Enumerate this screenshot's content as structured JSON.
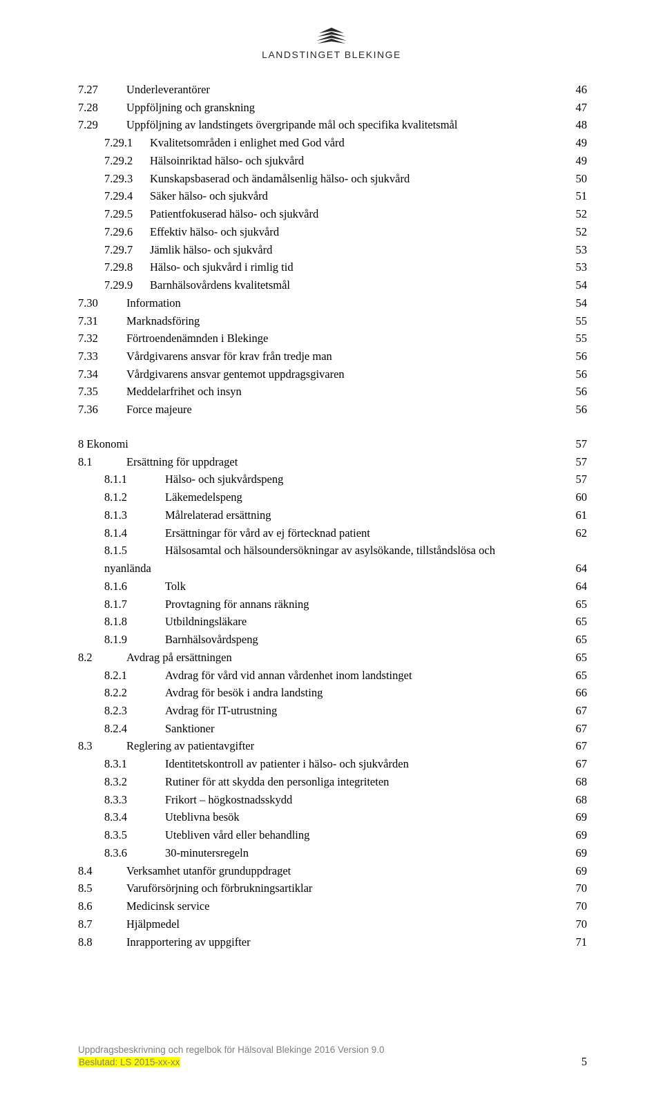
{
  "header": {
    "org_name": "LANDSTINGET BLEKINGE"
  },
  "toc": [
    {
      "indent": 0,
      "num": "7.27",
      "title": "Underleverantörer",
      "page": "46"
    },
    {
      "indent": 0,
      "num": "7.28",
      "title": "Uppföljning och granskning",
      "page": "47"
    },
    {
      "indent": 0,
      "num": "7.29",
      "title": "Uppföljning av landstingets övergripande mål och specifika kvalitetsmål",
      "page": "48"
    },
    {
      "indent": 1,
      "num": "7.29.1",
      "title": "Kvalitetsområden i enlighet med God vård",
      "page": "49"
    },
    {
      "indent": 1,
      "num": "7.29.2",
      "title": "Hälsoinriktad hälso- och sjukvård",
      "page": "49"
    },
    {
      "indent": 1,
      "num": "7.29.3",
      "title": "Kunskapsbaserad och ändamålsenlig hälso- och sjukvård",
      "page": "50"
    },
    {
      "indent": 1,
      "num": "7.29.4",
      "title": "Säker hälso- och sjukvård",
      "page": "51"
    },
    {
      "indent": 1,
      "num": "7.29.5",
      "title": "Patientfokuserad hälso- och sjukvård",
      "page": "52"
    },
    {
      "indent": 1,
      "num": "7.29.6",
      "title": "Effektiv hälso- och sjukvård",
      "page": "52"
    },
    {
      "indent": 1,
      "num": "7.29.7",
      "title": "Jämlik hälso- och sjukvård",
      "page": "53"
    },
    {
      "indent": 1,
      "num": "7.29.8",
      "title": "Hälso- och sjukvård i rimlig tid",
      "page": "53"
    },
    {
      "indent": 1,
      "num": "7.29.9",
      "title": "Barnhälsovårdens kvalitetsmål",
      "page": "54"
    },
    {
      "indent": 0,
      "num": "7.30",
      "title": "Information",
      "page": "54"
    },
    {
      "indent": 0,
      "num": "7.31",
      "title": "Marknadsföring",
      "page": "55"
    },
    {
      "indent": 0,
      "num": "7.32",
      "title": "Förtroendenämnden i Blekinge",
      "page": "55"
    },
    {
      "indent": 0,
      "num": "7.33",
      "title": "Vårdgivarens ansvar för krav från tredje man",
      "page": "56"
    },
    {
      "indent": 0,
      "num": "7.34",
      "title": "Vårdgivarens ansvar gentemot uppdragsgivaren",
      "page": "56"
    },
    {
      "indent": 0,
      "num": "7.35",
      "title": "Meddelarfrihet och insyn",
      "page": "56"
    },
    {
      "indent": 0,
      "num": "7.36",
      "title": "Force majeure",
      "page": "56"
    }
  ],
  "toc2": [
    {
      "indent": "top",
      "num": "8 Ekonomi",
      "title": "",
      "page": "57"
    },
    {
      "indent": 0,
      "num": "8.1",
      "title": "Ersättning för uppdraget",
      "page": "57"
    },
    {
      "indent": 2,
      "num": "8.1.1",
      "title": "Hälso- och sjukvårdspeng",
      "page": "57"
    },
    {
      "indent": 2,
      "num": "8.1.2",
      "title": "Läkemedelspeng",
      "page": "60"
    },
    {
      "indent": 2,
      "num": "8.1.3",
      "title": "Målrelaterad ersättning",
      "page": "61"
    },
    {
      "indent": 2,
      "num": "8.1.4",
      "title": "Ersättningar för vård av ej förtecknad patient",
      "page": "62"
    },
    {
      "indent": 2,
      "num": "8.1.5",
      "title": "Hälsosamtal och hälsoundersökningar av asylsökande, tillståndslösa och",
      "page": ""
    },
    {
      "indent": "1nb",
      "num": "",
      "title": "nyanlända",
      "page": "64"
    },
    {
      "indent": 2,
      "num": "8.1.6",
      "title": "Tolk",
      "page": "64"
    },
    {
      "indent": 2,
      "num": "8.1.7",
      "title": "Provtagning för annans räkning",
      "page": "65"
    },
    {
      "indent": 2,
      "num": "8.1.8",
      "title": "Utbildningsläkare",
      "page": "65"
    },
    {
      "indent": 2,
      "num": "8.1.9",
      "title": "Barnhälsovårdspeng",
      "page": "65"
    },
    {
      "indent": 0,
      "num": "8.2",
      "title": "Avdrag på ersättningen",
      "page": "65"
    },
    {
      "indent": 2,
      "num": "8.2.1",
      "title": "Avdrag för vård vid annan vårdenhet inom landstinget",
      "page": "65"
    },
    {
      "indent": 2,
      "num": "8.2.2",
      "title": "Avdrag för besök i andra landsting",
      "page": "66"
    },
    {
      "indent": 2,
      "num": "8.2.3",
      "title": "Avdrag för IT-utrustning",
      "page": "67"
    },
    {
      "indent": 2,
      "num": "8.2.4",
      "title": "Sanktioner",
      "page": "67"
    },
    {
      "indent": 0,
      "num": "8.3",
      "title": "Reglering av patientavgifter",
      "page": "67"
    },
    {
      "indent": 2,
      "num": "8.3.1",
      "title": "Identitetskontroll av patienter i hälso- och sjukvården",
      "page": "67"
    },
    {
      "indent": 2,
      "num": "8.3.2",
      "title": "Rutiner för att skydda den personliga integriteten",
      "page": "68"
    },
    {
      "indent": 2,
      "num": "8.3.3",
      "title": "Frikort – högkostnadsskydd",
      "page": "68"
    },
    {
      "indent": 2,
      "num": "8.3.4",
      "title": "Uteblivna besök",
      "page": "69"
    },
    {
      "indent": 2,
      "num": "8.3.5",
      "title": "Utebliven vård eller behandling",
      "page": "69"
    },
    {
      "indent": 2,
      "num": "8.3.6",
      "title": "30-minutersregeln",
      "page": "69"
    },
    {
      "indent": 0,
      "num": "8.4",
      "title": "Verksamhet utanför grunduppdraget",
      "page": "69"
    },
    {
      "indent": 0,
      "num": "8.5",
      "title": "Varuförsörjning och förbrukningsartiklar",
      "page": "70"
    },
    {
      "indent": 0,
      "num": "8.6",
      "title": "Medicinsk service",
      "page": "70"
    },
    {
      "indent": 0,
      "num": "8.7",
      "title": "Hjälpmedel",
      "page": "70"
    },
    {
      "indent": 0,
      "num": "8.8",
      "title": "Inrapportering av uppgifter",
      "page": "71"
    }
  ],
  "footer": {
    "line1": "Uppdragsbeskrivning och regelbok för Hälsoval Blekinge 2016 Version 9.0",
    "line2": "Beslutad: LS 2015-xx-xx",
    "page_number": "5"
  }
}
